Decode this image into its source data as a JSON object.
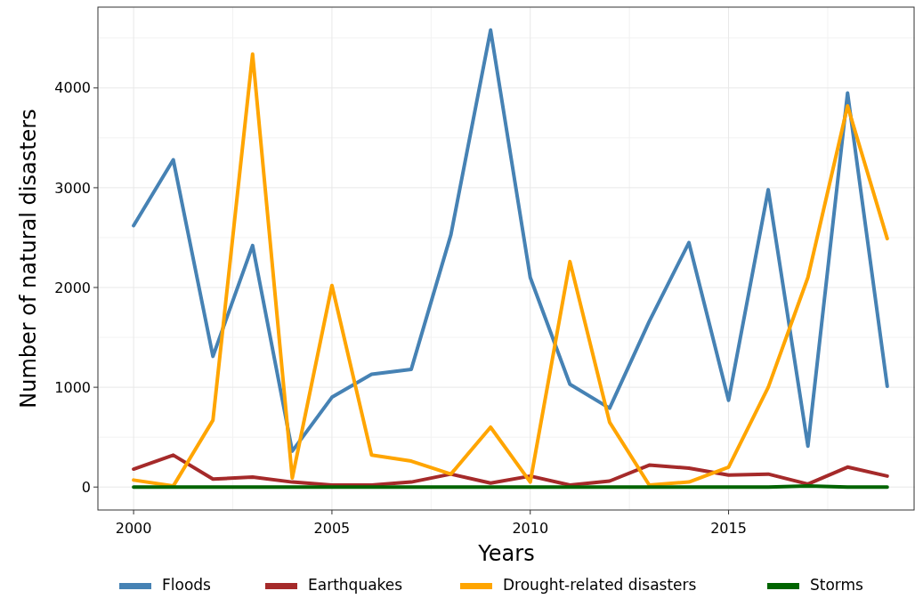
{
  "chart_data": {
    "type": "line",
    "xlabel": "Years",
    "ylabel": "Number of natural disasters",
    "x": [
      2000,
      2001,
      2002,
      2003,
      2004,
      2005,
      2006,
      2007,
      2008,
      2009,
      2010,
      2011,
      2012,
      2013,
      2014,
      2015,
      2016,
      2017,
      2018,
      2019
    ],
    "xlim": [
      1999.1,
      2019.7
    ],
    "xticks": [
      2000,
      2005,
      2010,
      2015
    ],
    "ylim": [
      -230,
      4810
    ],
    "yticks": [
      0,
      1000,
      2000,
      3000,
      4000
    ],
    "grid": true,
    "legend": "bottom",
    "line_style": "solid",
    "marker": "none",
    "series": [
      {
        "name": "Floods",
        "color": "#4682b4",
        "values": [
          2620,
          3280,
          1310,
          2420,
          360,
          900,
          1130,
          1180,
          2530,
          4580,
          2100,
          1030,
          790,
          1660,
          2450,
          870,
          2980,
          410,
          3950,
          1010
        ]
      },
      {
        "name": "Earthquakes",
        "color": "#a52a2a",
        "values": [
          180,
          320,
          80,
          100,
          50,
          20,
          20,
          50,
          130,
          40,
          110,
          20,
          60,
          220,
          190,
          120,
          130,
          30,
          200,
          110
        ]
      },
      {
        "name": "Drought-related disasters",
        "color": "#ffa500",
        "values": [
          70,
          10,
          670,
          4340,
          90,
          2020,
          320,
          260,
          130,
          600,
          50,
          2260,
          650,
          20,
          50,
          200,
          1000,
          2100,
          3820,
          2490
        ]
      },
      {
        "name": "Storms",
        "color": "#006400",
        "values": [
          0,
          0,
          0,
          0,
          0,
          0,
          0,
          0,
          0,
          0,
          0,
          0,
          0,
          0,
          0,
          0,
          0,
          10,
          0,
          0
        ]
      }
    ]
  }
}
